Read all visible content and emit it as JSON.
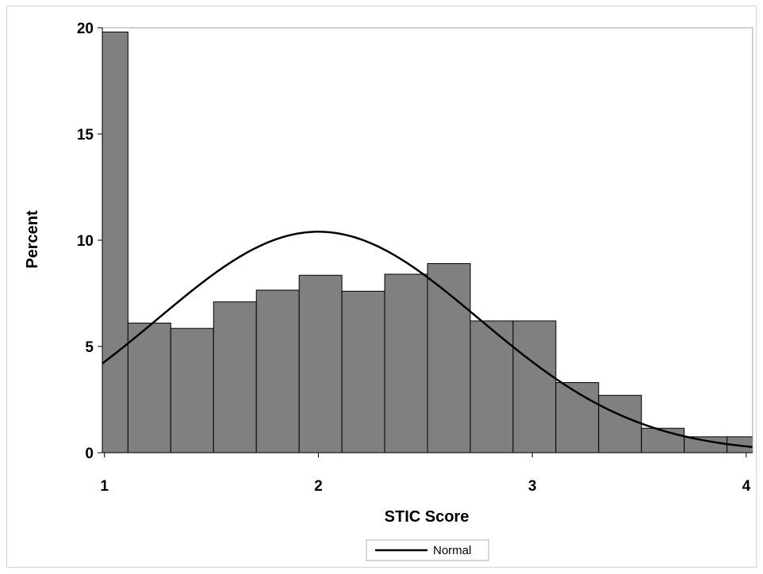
{
  "chart_data": {
    "type": "bar",
    "subtype": "histogram",
    "xlabel": "STIC Score",
    "ylabel": "Percent",
    "xlim": [
      0.99,
      4.03
    ],
    "ylim": [
      0,
      20
    ],
    "x_ticks": [
      1,
      2,
      3,
      4
    ],
    "y_ticks": [
      0,
      5,
      10,
      15,
      20
    ],
    "grid": false,
    "bars": [
      {
        "x0": 0.99,
        "x1": 1.11,
        "value": 19.8
      },
      {
        "x0": 1.11,
        "x1": 1.31,
        "value": 6.1
      },
      {
        "x0": 1.31,
        "x1": 1.51,
        "value": 5.85
      },
      {
        "x0": 1.51,
        "x1": 1.71,
        "value": 7.1
      },
      {
        "x0": 1.71,
        "x1": 1.91,
        "value": 7.65
      },
      {
        "x0": 1.91,
        "x1": 2.11,
        "value": 8.35
      },
      {
        "x0": 2.11,
        "x1": 2.31,
        "value": 7.6
      },
      {
        "x0": 2.31,
        "x1": 2.51,
        "value": 8.4
      },
      {
        "x0": 2.51,
        "x1": 2.71,
        "value": 8.9
      },
      {
        "x0": 2.71,
        "x1": 2.91,
        "value": 6.2
      },
      {
        "x0": 2.91,
        "x1": 3.11,
        "value": 6.2
      },
      {
        "x0": 3.11,
        "x1": 3.31,
        "value": 3.3
      },
      {
        "x0": 3.31,
        "x1": 3.51,
        "value": 2.7
      },
      {
        "x0": 3.51,
        "x1": 3.71,
        "value": 1.15
      },
      {
        "x0": 3.71,
        "x1": 3.91,
        "value": 0.75
      },
      {
        "x0": 3.91,
        "x1": 4.03,
        "value": 0.75
      }
    ],
    "normal_curve": {
      "name": "Normal",
      "mean": 2.0,
      "sd": 0.75,
      "peak": 10.4
    },
    "legend": {
      "placement": "bottom-center",
      "entries": [
        "Normal"
      ]
    },
    "colors": {
      "bar_fill": "#808080",
      "bar_stroke": "#000000",
      "curve": "#000000"
    }
  }
}
